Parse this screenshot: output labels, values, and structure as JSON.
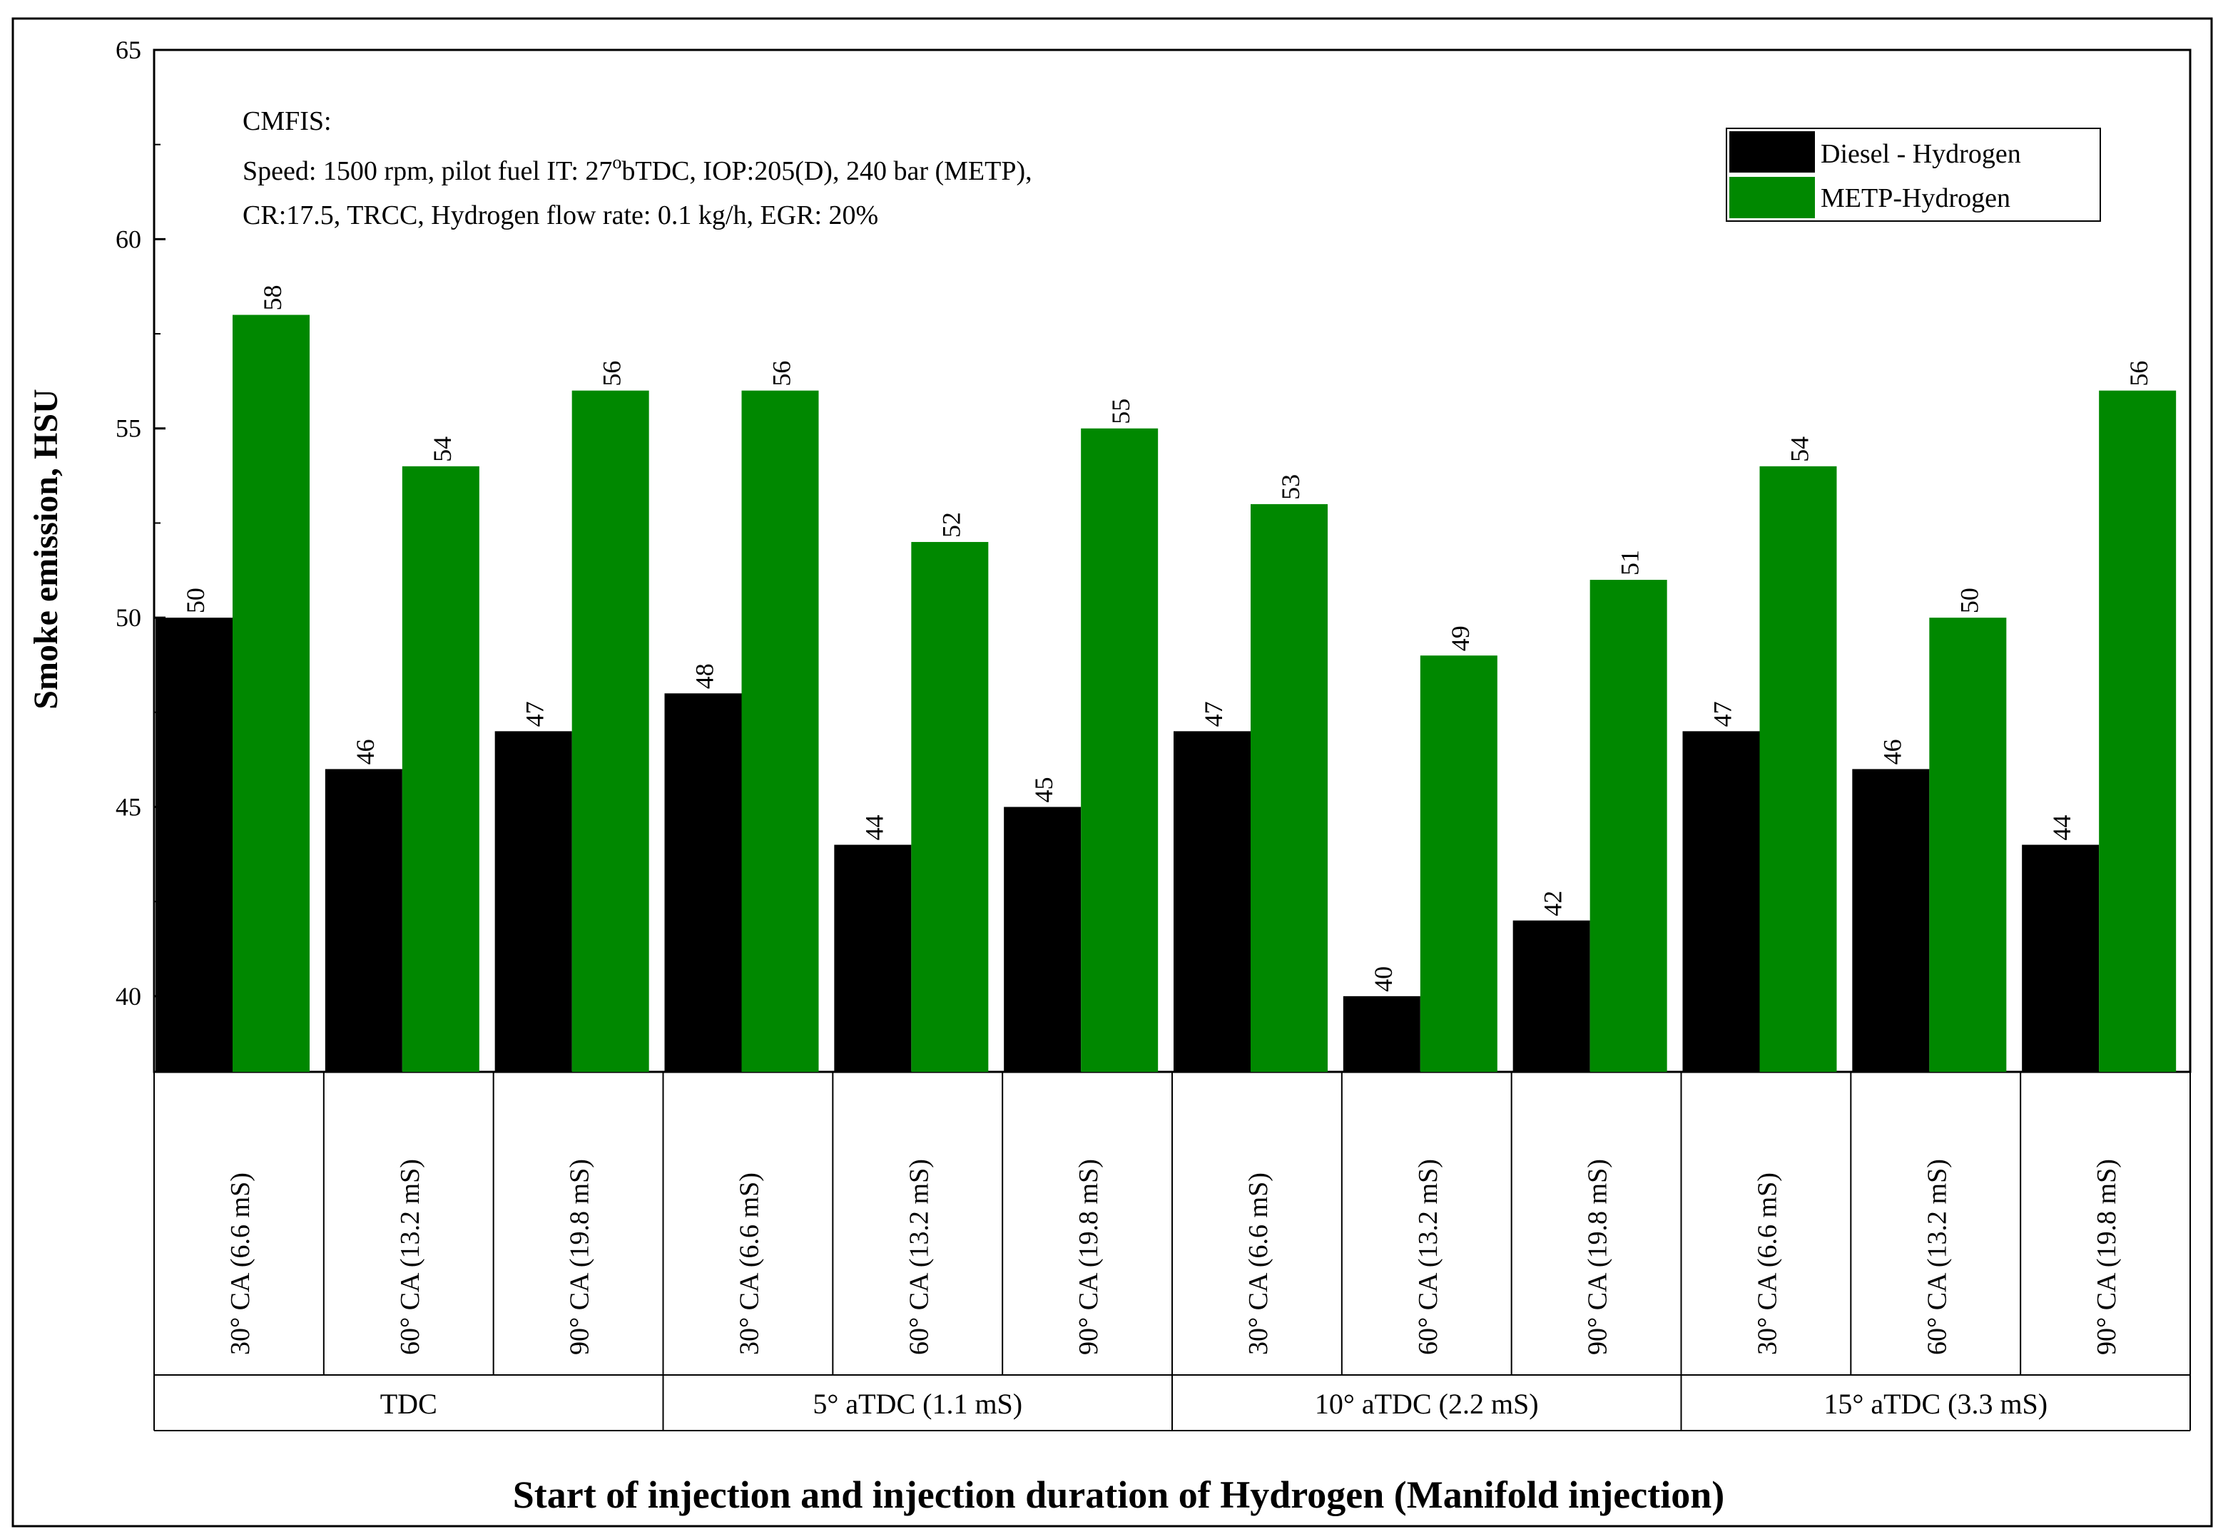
{
  "chart_data": {
    "type": "bar",
    "ylabel": "Smoke emission, HSU",
    "xlabel": "Start of injection and injection duration of Hydrogen (Manifold injection)",
    "ylim": [
      38,
      65
    ],
    "yticks": [
      40,
      45,
      50,
      55,
      60,
      65
    ],
    "categories": [
      "30° CA (6.6 mS)",
      "60° CA (13.2 mS)",
      "90° CA (19.8 mS)",
      "30° CA (6.6 mS)",
      "60° CA (13.2 mS)",
      "90° CA (19.8 mS)",
      "30° CA (6.6 mS)",
      "60° CA (13.2 mS)",
      "90° CA (19.8 mS)",
      "30° CA (6.6 mS)",
      "60° CA (13.2 mS)",
      "90° CA (19.8 mS)"
    ],
    "groups": [
      "TDC",
      "5° aTDC (1.1 mS)",
      "10° aTDC (2.2 mS)",
      "15° aTDC (3.3 mS)"
    ],
    "series": [
      {
        "name": "Diesel - Hydrogen",
        "color": "#000000",
        "values": [
          50,
          46,
          47,
          48,
          44,
          45,
          47,
          40,
          42,
          47,
          46,
          44
        ]
      },
      {
        "name": "METP-Hydrogen",
        "color": "#008800",
        "values": [
          58,
          54,
          56,
          56,
          52,
          55,
          53,
          49,
          51,
          54,
          50,
          56
        ]
      }
    ],
    "legend_position": "top-right",
    "annotation": {
      "line1": "CMFIS:",
      "line2_part1": "Speed: 1500 rpm, pilot fuel IT: 27",
      "line2_sup": "o",
      "line2_part2": "bTDC, IOP:205(D), 240 bar (METP),",
      "line3": "CR:17.5, TRCC, Hydrogen flow rate: 0.1 kg/h, EGR: 20%"
    }
  }
}
